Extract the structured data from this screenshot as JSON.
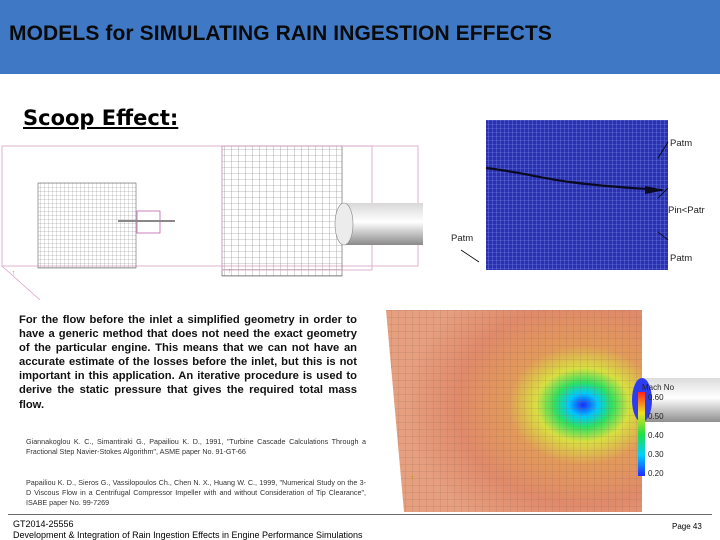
{
  "header": {
    "title": "MODELS for SIMULATING RAIN INGESTION EFFECTS"
  },
  "section": {
    "title": "Scoop Effect:"
  },
  "description": "For the flow before the inlet a simplified geometry in order to have a generic method that does not need the exact geometry of the particular engine. This means that we can not have an accurate estimate of the losses before the inlet, but this is not important in this application. An iterative procedure is used to derive the static pressure that gives the required total mass flow.",
  "references": [
    "Giannakoglou K. C., Simantiraki G., Papailiou K. D., 1991, \"Turbine Cascade Calculations Through a Fractional Step Navier-Stokes Algorithm\", ASME paper No. 91-GT-66",
    "Papailiou K. D., Sieros G., Vassilopoulos Ch., Chen N. X., Huang W. C., 1999, \"Numerical Study on the 3-D Viscous Flow in a Centrifugal Compressor Impeller with and without Consideration of Tip Clearance\", ISABE paper No. 99-7269"
  ],
  "pressure_figure": {
    "labels": [
      "Patm",
      "Pin<Patr",
      "Patm",
      "Patm"
    ]
  },
  "mach_figure": {
    "legend_title": "Mach No",
    "scale_values": [
      "0.60",
      "0.50",
      "0.40",
      "0.30",
      "0.20"
    ]
  },
  "footer": {
    "code": "GT2014-25556",
    "title": "Development & Integration of Rain Ingestion Effects in Engine Performance Simulations",
    "page": "Page 43"
  },
  "colors": {
    "header_bg": "#3f78c5",
    "mesh_blue": "#2b2fb0",
    "mesh_line": "#6a8ae0"
  }
}
